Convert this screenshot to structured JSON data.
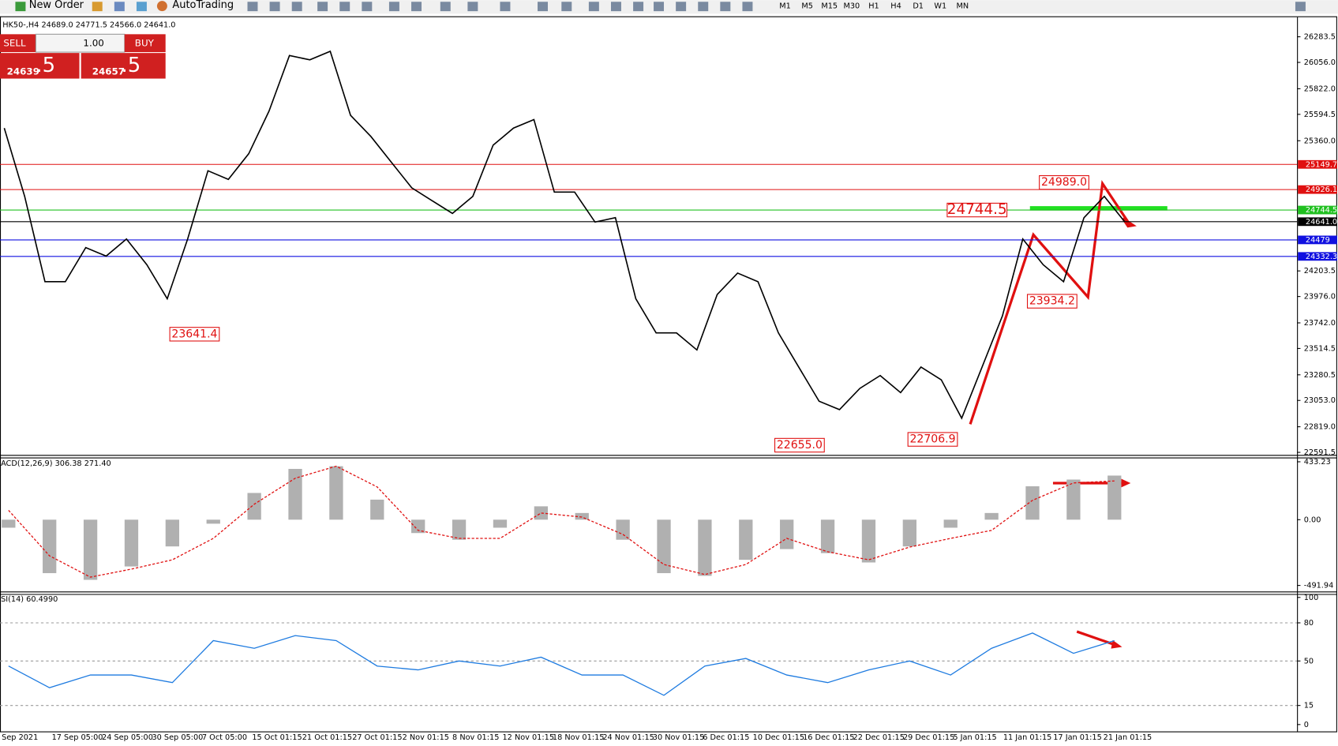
{
  "toolbar": {
    "new_order": "New Order",
    "auto_trading": "AutoTrading",
    "timeframes": [
      "M1",
      "M5",
      "M15",
      "M30",
      "H1",
      "H4",
      "D1",
      "W1",
      "MN"
    ]
  },
  "symbol_header": "HK50-,H4  24689.0 24771.5 24566.0 24641.0",
  "trade_panel": {
    "sell": "SELL",
    "lot": "1.00",
    "buy": "BUY",
    "bid_main": "24639",
    "bid_frac": ".5",
    "ask_main": "24657",
    "ask_frac": ".5"
  },
  "time_labels": [
    "Sep 2021",
    "17 Sep 05:00",
    "24 Sep 05:00",
    "30 Sep 05:00",
    "7 Oct 05:00",
    "15 Oct 01:15",
    "21 Oct 01:15",
    "27 Oct 01:15",
    "2 Nov 01:15",
    "8 Nov 01:15",
    "12 Nov 01:15",
    "18 Nov 01:15",
    "24 Nov 01:15",
    "30 Nov 01:15",
    "6 Dec 01:15",
    "10 Dec 01:15",
    "16 Dec 01:15",
    "22 Dec 01:15",
    "29 Dec 01:15",
    "5 Jan 01:15",
    "11 Jan 01:15",
    "17 Jan 01:15",
    "21 Jan 01:15"
  ],
  "chart_data": [
    {
      "type": "line",
      "color": "#000000",
      "values": [
        25472,
        24866,
        24108,
        24108,
        24411,
        24335,
        24487,
        24259,
        23956,
        24487,
        25093,
        25017,
        25245,
        25624,
        26117,
        26079,
        26155,
        25586,
        25397,
        25169,
        24942,
        24828,
        24714,
        24866,
        25321,
        25472,
        25548,
        24904,
        24904,
        24638,
        24676,
        23956,
        23653,
        23653,
        23501,
        23994,
        24184,
        24108,
        23653,
        23350,
        23046,
        22971,
        23160,
        23274,
        23122,
        23350,
        23236,
        22895,
        23350,
        23805,
        24487,
        24259,
        24108,
        24676,
        24866,
        24641
      ],
      "ylim": [
        22568.8,
        26457.9
      ],
      "yticks": [
        26283.5,
        {
          "value": 26056,
          "label": "26056.0"
        },
        {
          "value": 25822,
          "label": "25822.0"
        },
        25594.5,
        {
          "value": 25360,
          "label": "25360.0"
        },
        24203.5,
        {
          "value": 23976,
          "label": "23976.0"
        },
        {
          "value": 23742,
          "label": "23742.0"
        },
        23514.5,
        23280.5,
        {
          "value": 23053,
          "label": "23053.0"
        },
        {
          "value": 22819,
          "label": "22819.0"
        },
        22591.5
      ],
      "levels": [
        {
          "value": 25149.7,
          "color": "#e01010"
        },
        {
          "value": 24926.1,
          "color": "#e01010"
        },
        {
          "value": 24744.5,
          "color": "#20c020"
        },
        {
          "value": 24641,
          "label": "24641.0",
          "color": "#000000"
        },
        {
          "value": 24479,
          "color": "#1010e0"
        },
        {
          "value": 24332.3,
          "color": "#1010e0"
        }
      ],
      "annotations": [
        {
          "value": 24989,
          "label": "24989.0"
        },
        {
          "value": 24744.5,
          "label": "24744.5"
        },
        {
          "value": 23934.2,
          "label": "23934.2"
        },
        {
          "value": 23641.4,
          "label": "23641.4"
        },
        {
          "value": 22655,
          "label": "22655.0"
        },
        {
          "value": 22706.9,
          "label": "22706.9"
        }
      ]
    },
    {
      "type": "bar",
      "title": "ACD(12,26,9) 306.38 271.40",
      "color": "#b0b0b0",
      "signal_color": "#e01010",
      "values": [
        -60,
        -400,
        -450,
        -350,
        -200,
        -30,
        200,
        380,
        400,
        150,
        -100,
        -150,
        -60,
        100,
        50,
        -150,
        -400,
        -420,
        -300,
        -220,
        -250,
        -320,
        -200,
        -60,
        50,
        250,
        300,
        330
      ],
      "signal": [
        70,
        -270,
        -430,
        -370,
        -300,
        -140,
        116,
        310,
        400,
        245,
        -80,
        -140,
        -140,
        50,
        20,
        -110,
        -335,
        -410,
        -335,
        -140,
        -240,
        -300,
        -205,
        -140,
        -80,
        145,
        275,
        290
      ],
      "ylim": [
        -537,
        459
      ],
      "yticks": [
        433.23,
        {
          "value": 0,
          "label": "0.00"
        },
        -491.94
      ]
    },
    {
      "type": "line",
      "title": "SI(14) 60.4990",
      "color": "#1e7be0",
      "values": [
        46,
        29,
        39,
        39,
        33,
        66,
        60,
        70,
        66,
        46,
        43,
        50,
        46,
        53,
        39,
        39,
        23,
        46,
        52,
        39,
        33,
        43,
        50,
        39,
        60,
        72,
        56,
        66
      ],
      "ylim": [
        -5.4,
        102
      ],
      "yticks": [
        0,
        15,
        50,
        80,
        100
      ]
    }
  ]
}
